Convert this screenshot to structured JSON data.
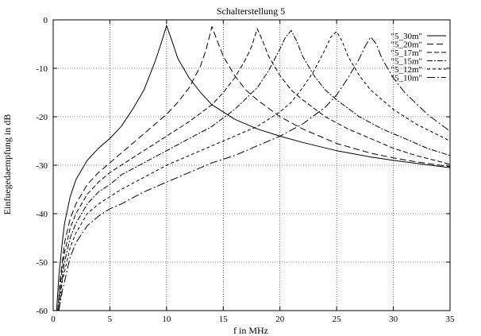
{
  "chart_data": {
    "type": "line",
    "title": "Schalterstellung 5",
    "xlabel": "f in MHz",
    "ylabel": "Einfuegedaempfung in dB",
    "xlim": [
      0,
      35
    ],
    "ylim": [
      -60,
      0
    ],
    "xticks": [
      0,
      5,
      10,
      15,
      20,
      25,
      30,
      35
    ],
    "yticks": [
      -60,
      -50,
      -40,
      -30,
      -20,
      -10,
      0
    ],
    "grid": true,
    "legend_position": "top-right",
    "series": [
      {
        "name": "\"5_30m\"",
        "dash": "solid",
        "x": [
          0.3,
          0.5,
          0.8,
          1,
          1.5,
          2,
          3,
          4,
          5,
          6,
          7,
          8,
          9,
          9.5,
          10,
          10.5,
          11,
          12,
          13,
          14,
          15,
          16,
          18,
          20,
          22,
          25,
          28,
          30,
          32,
          35
        ],
        "y": [
          -60,
          -53,
          -46,
          -42,
          -36.5,
          -33,
          -29,
          -26.5,
          -24.5,
          -22,
          -18.5,
          -14.5,
          -8.5,
          -5,
          -1.2,
          -4.5,
          -8,
          -12,
          -15,
          -17.5,
          -19,
          -20.5,
          -22.5,
          -24,
          -25.3,
          -27,
          -28.3,
          -29,
          -29.6,
          -30.5
        ]
      },
      {
        "name": "\"5_20m\"",
        "dash": "8 4",
        "x": [
          0.4,
          0.6,
          1,
          1.5,
          2,
          3,
          4,
          5,
          6,
          7,
          8,
          9,
          10,
          11,
          12,
          13,
          13.5,
          14,
          14.5,
          15,
          16,
          17,
          18,
          20,
          22,
          25,
          28,
          30,
          32,
          35
        ],
        "y": [
          -60,
          -54,
          -46,
          -41,
          -38,
          -34,
          -31.5,
          -29.5,
          -27.5,
          -25.5,
          -23.5,
          -21.5,
          -19.5,
          -17,
          -14,
          -9.5,
          -6,
          -1.4,
          -4.5,
          -7.5,
          -11.5,
          -14.5,
          -16.5,
          -20,
          -22.5,
          -25.5,
          -27.5,
          -28.5,
          -29.3,
          -30.3
        ]
      },
      {
        "name": "\"5_17m\"",
        "dash": "6 3",
        "x": [
          0.4,
          0.6,
          1,
          1.5,
          2,
          3,
          4,
          5,
          6,
          8,
          10,
          12,
          14,
          15,
          16,
          17,
          17.5,
          18,
          18.5,
          19,
          20,
          21,
          22,
          24,
          26,
          28,
          30,
          32,
          35
        ],
        "y": [
          -60,
          -55,
          -48,
          -43,
          -40,
          -36,
          -33.5,
          -31.5,
          -30,
          -27,
          -24,
          -21,
          -17.5,
          -15,
          -12,
          -8,
          -5.5,
          -1.8,
          -4.5,
          -7.5,
          -11.5,
          -14.5,
          -16.5,
          -20,
          -22.5,
          -24.5,
          -26.5,
          -28,
          -29.8
        ]
      },
      {
        "name": "\"5_15m\"",
        "dash": "7 2 2 2",
        "x": [
          0.5,
          0.7,
          1,
          1.5,
          2,
          3,
          4,
          5,
          6,
          8,
          10,
          12,
          14,
          16,
          18,
          19,
          20,
          20.5,
          21,
          21.5,
          22,
          23,
          24,
          25,
          27,
          29,
          31,
          33,
          35
        ],
        "y": [
          -60,
          -55,
          -50,
          -45,
          -42,
          -38,
          -35.5,
          -34,
          -32,
          -29.5,
          -27,
          -24.5,
          -22,
          -18.5,
          -14,
          -10.5,
          -6,
          -3.5,
          -2.2,
          -4.5,
          -7.5,
          -11.5,
          -14.5,
          -16.5,
          -20,
          -22.5,
          -24.5,
          -26.5,
          -28
        ]
      },
      {
        "name": "\"5_12m\"",
        "dash": "4 3",
        "x": [
          0.5,
          0.8,
          1,
          1.5,
          2,
          3,
          4,
          5,
          6,
          8,
          10,
          12,
          14,
          16,
          18,
          20,
          21,
          22,
          23,
          24,
          24.5,
          25,
          25.5,
          26,
          27,
          28,
          30,
          32,
          35
        ],
        "y": [
          -60,
          -54,
          -52,
          -47,
          -44,
          -40,
          -38,
          -36.5,
          -35,
          -32.5,
          -30,
          -28,
          -26,
          -24,
          -22,
          -19,
          -17,
          -14,
          -10.5,
          -6,
          -3.5,
          -2.4,
          -4.5,
          -7.5,
          -11.5,
          -14.5,
          -18.5,
          -21.5,
          -25
        ]
      },
      {
        "name": "\"5_10m\"",
        "dash": "10 3 2 3",
        "x": [
          0.5,
          0.8,
          1,
          1.5,
          2,
          3,
          4,
          5,
          6,
          8,
          10,
          12,
          14,
          16,
          18,
          20,
          22,
          24,
          25,
          26,
          27,
          27.5,
          28,
          28.5,
          29,
          30,
          31,
          33,
          35
        ],
        "y": [
          -60,
          -56,
          -54,
          -49,
          -46,
          -42.5,
          -40.5,
          -39,
          -38,
          -35.5,
          -33.5,
          -31.5,
          -29.5,
          -28,
          -26,
          -24,
          -21.5,
          -18,
          -15.5,
          -12,
          -8,
          -5.5,
          -3.5,
          -5,
          -8,
          -12,
          -15,
          -19.5,
          -23
        ]
      }
    ]
  }
}
